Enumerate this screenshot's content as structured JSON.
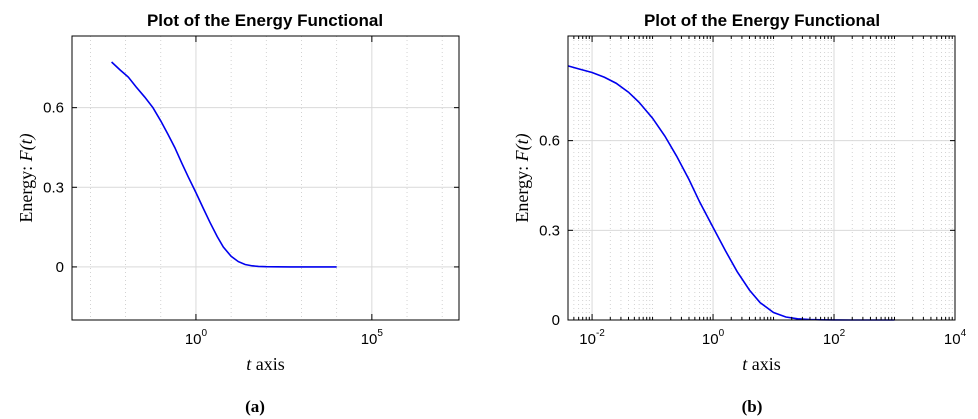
{
  "chart_data": [
    {
      "type": "line",
      "panel_caption": "(a)",
      "title": "Plot of the Energy Functional",
      "xlabel_italic": "t",
      "xlabel_rest": " axis",
      "ylabel_prefix": "Energy: ",
      "ylabel_math": "F(t)",
      "x_scale": "log",
      "xlim": [
        0.0003,
        30000000
      ],
      "ylim": [
        -0.2,
        0.87
      ],
      "x_ticks": [
        {
          "value": 1,
          "base": "10",
          "exp": "0"
        },
        {
          "value": 100000,
          "base": "10",
          "exp": "5"
        }
      ],
      "y_ticks": [
        {
          "value": 0,
          "label": "0"
        },
        {
          "value": 0.3,
          "label": "0.3"
        },
        {
          "value": 0.6,
          "label": "0.6"
        }
      ],
      "x_minor_ticks": [
        0.001,
        0.01,
        0.1,
        10,
        100,
        1000,
        10000,
        1000000,
        10000000
      ],
      "grid": true,
      "series": [
        {
          "color": "#0000ee",
          "x": [
            0.004,
            0.007,
            0.012,
            0.02,
            0.035,
            0.06,
            0.1,
            0.16,
            0.25,
            0.4,
            0.6,
            1,
            1.6,
            2.5,
            4,
            6,
            10,
            16,
            25,
            40,
            60,
            100,
            200,
            500,
            1000,
            2000,
            5000,
            10000
          ],
          "y": [
            0.772,
            0.742,
            0.715,
            0.678,
            0.64,
            0.6,
            0.55,
            0.5,
            0.45,
            0.39,
            0.34,
            0.28,
            0.222,
            0.168,
            0.115,
            0.075,
            0.04,
            0.02,
            0.009,
            0.004,
            0.002,
            0.0008,
            0.0003,
            0.0001,
            0,
            0,
            0,
            0
          ]
        }
      ]
    },
    {
      "type": "line",
      "panel_caption": "(b)",
      "title": "Plot of the Energy Functional",
      "xlabel_italic": "t",
      "xlabel_rest": " axis",
      "ylabel_prefix": "Energy: ",
      "ylabel_math": "F(t)",
      "x_scale": "log",
      "xlim": [
        0.004,
        10000
      ],
      "ylim": [
        0,
        0.95
      ],
      "x_ticks": [
        {
          "value": 0.01,
          "base": "10",
          "exp": "-2"
        },
        {
          "value": 1,
          "base": "10",
          "exp": "0"
        },
        {
          "value": 100,
          "base": "10",
          "exp": "2"
        },
        {
          "value": 10000,
          "base": "10",
          "exp": "4"
        }
      ],
      "y_ticks": [
        {
          "value": 0,
          "label": "0"
        },
        {
          "value": 0.3,
          "label": "0.3"
        },
        {
          "value": 0.6,
          "label": "0.6"
        }
      ],
      "x_minor_ticks": [
        0.005,
        0.006,
        0.007,
        0.008,
        0.009,
        0.02,
        0.03,
        0.04,
        0.05,
        0.06,
        0.07,
        0.08,
        0.09,
        0.1,
        0.2,
        0.3,
        0.4,
        0.5,
        0.6,
        0.7,
        0.8,
        0.9,
        2,
        3,
        4,
        5,
        6,
        7,
        8,
        9,
        10,
        20,
        30,
        40,
        50,
        60,
        70,
        80,
        90,
        200,
        300,
        400,
        500,
        600,
        700,
        800,
        900,
        1000,
        2000,
        3000,
        4000,
        5000,
        6000,
        7000,
        8000,
        9000
      ],
      "grid": true,
      "series": [
        {
          "color": "#0000ee",
          "x": [
            0.004,
            0.006,
            0.01,
            0.016,
            0.025,
            0.04,
            0.06,
            0.1,
            0.16,
            0.25,
            0.4,
            0.6,
            1,
            1.6,
            2.5,
            4,
            6,
            10,
            16,
            25,
            40,
            60,
            100,
            200,
            400,
            1000
          ],
          "y": [
            0.85,
            0.84,
            0.828,
            0.812,
            0.792,
            0.762,
            0.728,
            0.675,
            0.615,
            0.548,
            0.47,
            0.395,
            0.31,
            0.232,
            0.162,
            0.1,
            0.058,
            0.025,
            0.01,
            0.004,
            0.0015,
            0.0005,
            0.0002,
            0,
            0,
            0
          ]
        }
      ]
    }
  ]
}
